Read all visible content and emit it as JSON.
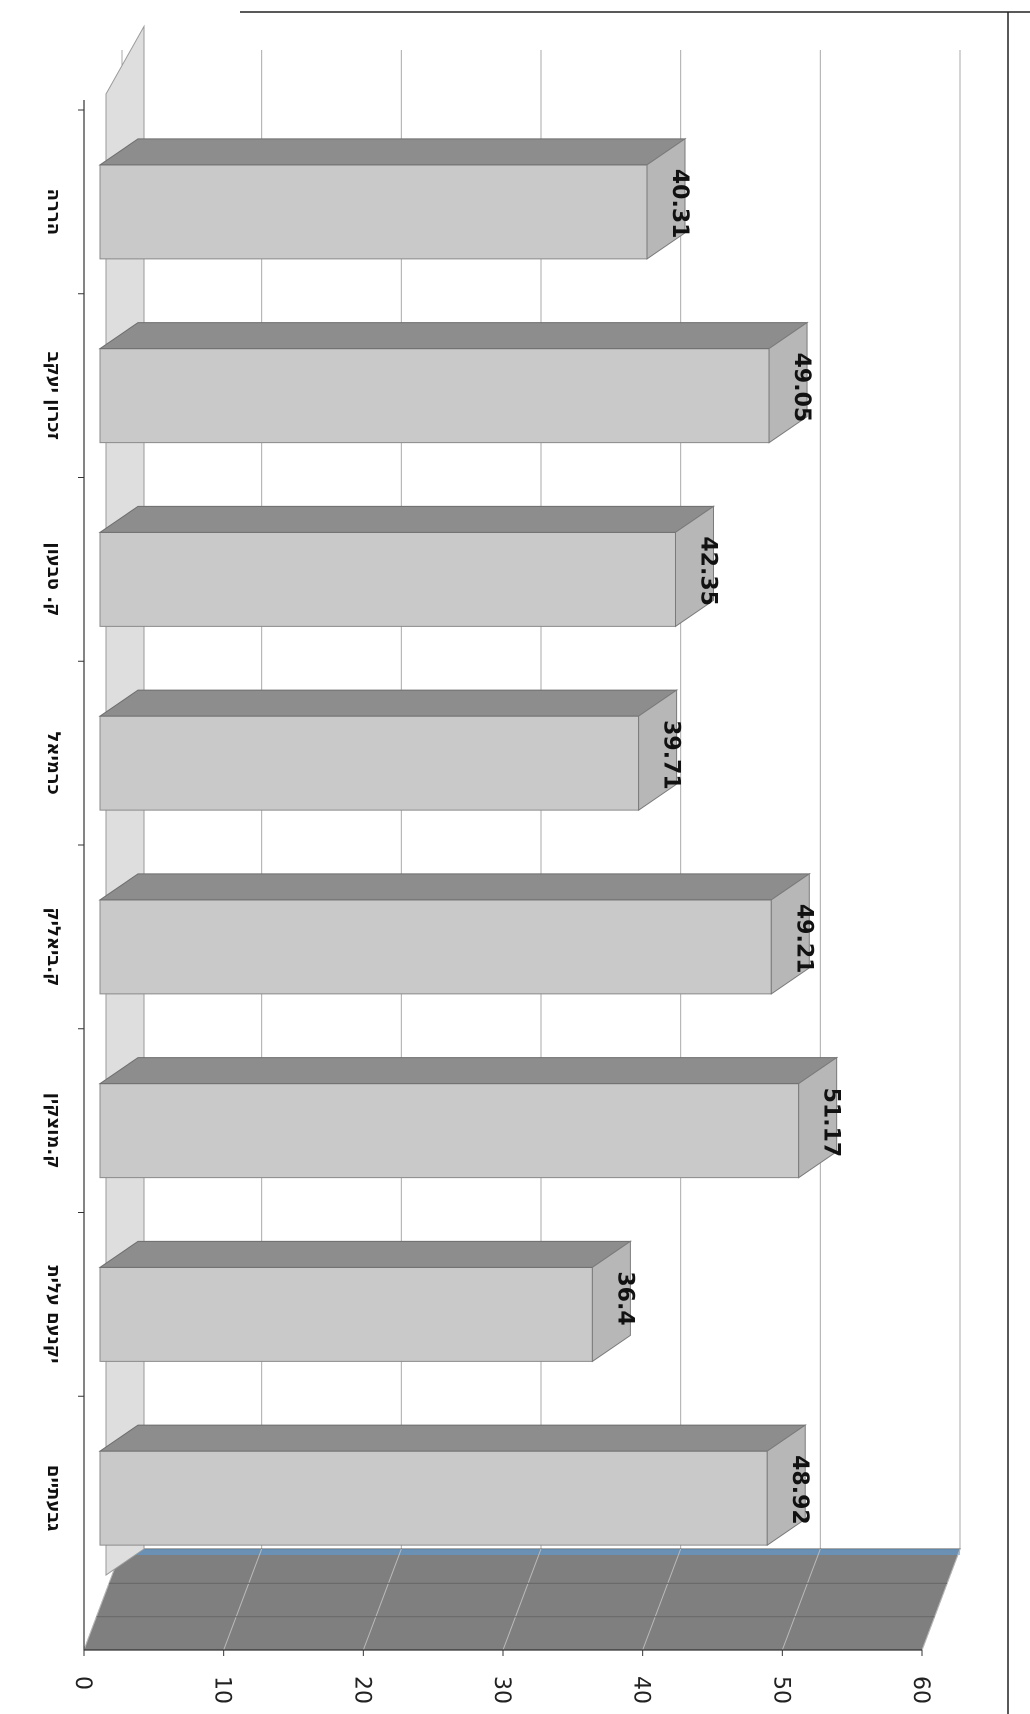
{
  "chart_data": {
    "type": "bar",
    "orientation": "horizontal",
    "style": "3d",
    "categories": [
      "הררה",
      "זכרון יעקב",
      "ק. טבעון",
      "כרמיאל",
      "ק.ביאליק",
      "ק.מוצקין",
      "יקנעם עלית",
      "גבעתיים"
    ],
    "values": [
      40.31,
      49.05,
      42.35,
      39.71,
      49.21,
      51.17,
      36.4,
      48.92
    ],
    "xlim": [
      0,
      60
    ],
    "xticks": [
      0,
      10,
      20,
      30,
      40,
      50,
      60
    ],
    "grid": true,
    "colors": {
      "bar_front": "#c9c9c9",
      "bar_top": "#8d8d8d",
      "bar_side": "#b7b7b7",
      "floor": "#7f7f7f",
      "back_wall": "#dedede",
      "grid": "#aaaaaa",
      "frame": "#222222"
    }
  }
}
